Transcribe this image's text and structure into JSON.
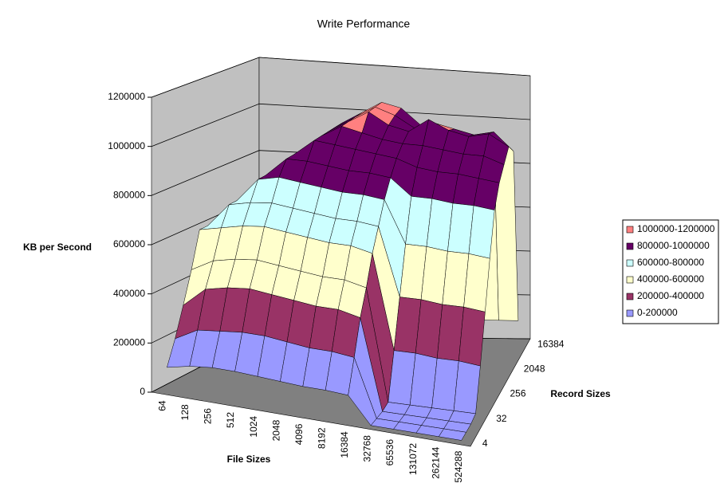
{
  "chart_data": {
    "type": "surface",
    "title": "Write Performance",
    "y_axis_label": "KB per Second",
    "x_axis_label": "File Sizes",
    "depth_axis_label": "Record Sizes",
    "x_categories": [
      "64",
      "128",
      "256",
      "512",
      "1024",
      "2048",
      "4096",
      "8192",
      "16384",
      "32768",
      "65536",
      "131072",
      "262144",
      "524288"
    ],
    "depth_categories": [
      "4",
      null,
      null,
      "32",
      null,
      null,
      "256",
      null,
      null,
      "2048",
      null,
      null,
      "16384"
    ],
    "values": [
      [
        100000,
        120000,
        130000,
        130000,
        125000,
        120000,
        115000,
        115000,
        110000,
        0,
        0,
        0,
        0,
        0
      ],
      [
        200000,
        250000,
        260000,
        270000,
        270000,
        260000,
        250000,
        250000,
        240000,
        0,
        0,
        0,
        0,
        0
      ],
      [
        320000,
        400000,
        420000,
        430000,
        420000,
        410000,
        400000,
        400000,
        380000,
        0,
        0,
        0,
        0,
        0
      ],
      [
        450000,
        500000,
        520000,
        530000,
        520000,
        510000,
        500000,
        500000,
        480000,
        10000,
        10000,
        10000,
        10000,
        10000
      ],
      [
        600000,
        620000,
        640000,
        650000,
        640000,
        630000,
        620000,
        620000,
        600000,
        200000,
        200000,
        190000,
        190000,
        180000
      ],
      [
        600000,
        700000,
        720000,
        730000,
        720000,
        710000,
        700000,
        700000,
        690000,
        400000,
        400000,
        390000,
        390000,
        380000
      ],
      [
        600000,
        700000,
        800000,
        820000,
        810000,
        800000,
        790000,
        790000,
        780000,
        600000,
        600000,
        590000,
        590000,
        580000
      ],
      [
        600000,
        700000,
        800000,
        880000,
        880000,
        870000,
        860000,
        860000,
        850000,
        780000,
        780000,
        770000,
        770000,
        760000
      ],
      [
        600000,
        700000,
        800000,
        880000,
        950000,
        940000,
        930000,
        920000,
        910000,
        880000,
        870000,
        870000,
        860000,
        850000
      ],
      [
        600000,
        700000,
        800000,
        880000,
        950000,
        1000000,
        980000,
        960000,
        950000,
        950000,
        940000,
        930000,
        930000,
        900000
      ],
      [
        600000,
        700000,
        800000,
        880000,
        950000,
        1000000,
        1050000,
        1000000,
        980000,
        1040000,
        1000000,
        980000,
        1000000,
        950000
      ],
      [
        600000,
        700000,
        800000,
        880000,
        950000,
        1000000,
        1050000,
        1020000,
        970000,
        1000000,
        980000,
        960000,
        980000,
        900000
      ],
      [
        600000,
        700000,
        800000,
        880000,
        950000,
        1000000,
        1050000,
        1030000,
        960000,
        100000,
        100000,
        100000,
        100000,
        100000
      ]
    ],
    "ylim": [
      0,
      1200000
    ],
    "yticks": [
      0,
      200000,
      400000,
      600000,
      800000,
      1000000,
      1200000
    ],
    "grid": true,
    "legend_position": "right",
    "legend": [
      {
        "name": "1000000-1200000",
        "color": "#ff8080"
      },
      {
        "name": "800000-1000000",
        "color": "#660066"
      },
      {
        "name": "600000-800000",
        "color": "#ccffff"
      },
      {
        "name": "400000-600000",
        "color": "#ffffcc"
      },
      {
        "name": "200000-400000",
        "color": "#993366"
      },
      {
        "name": "0-200000",
        "color": "#9999ff"
      }
    ]
  }
}
